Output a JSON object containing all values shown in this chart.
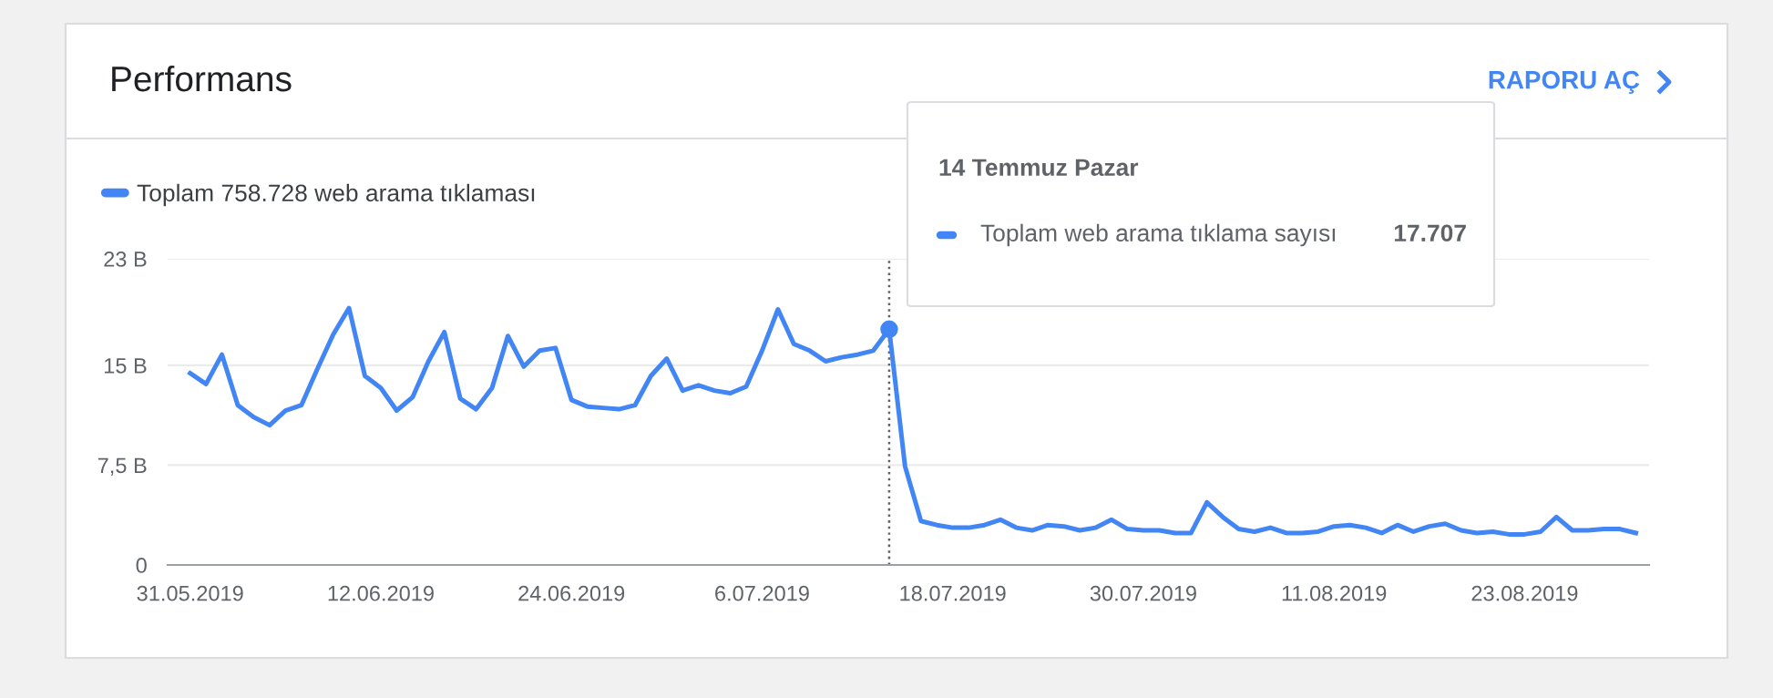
{
  "chart_data": {
    "type": "line",
    "title": "Performans",
    "x": [
      "2019-05-31",
      "2019-06-01",
      "2019-06-02",
      "2019-06-03",
      "2019-06-04",
      "2019-06-05",
      "2019-06-06",
      "2019-06-07",
      "2019-06-08",
      "2019-06-09",
      "2019-06-10",
      "2019-06-11",
      "2019-06-12",
      "2019-06-13",
      "2019-06-14",
      "2019-06-15",
      "2019-06-16",
      "2019-06-17",
      "2019-06-18",
      "2019-06-19",
      "2019-06-20",
      "2019-06-21",
      "2019-06-22",
      "2019-06-23",
      "2019-06-24",
      "2019-06-25",
      "2019-06-26",
      "2019-06-27",
      "2019-06-28",
      "2019-06-29",
      "2019-06-30",
      "2019-07-01",
      "2019-07-02",
      "2019-07-03",
      "2019-07-04",
      "2019-07-05",
      "2019-07-06",
      "2019-07-07",
      "2019-07-08",
      "2019-07-09",
      "2019-07-10",
      "2019-07-11",
      "2019-07-12",
      "2019-07-13",
      "2019-07-14",
      "2019-07-15",
      "2019-07-16",
      "2019-07-17",
      "2019-07-18",
      "2019-07-19",
      "2019-07-20",
      "2019-07-21",
      "2019-07-22",
      "2019-07-23",
      "2019-07-24",
      "2019-07-25",
      "2019-07-26",
      "2019-07-27",
      "2019-07-28",
      "2019-07-29",
      "2019-07-30",
      "2019-07-31",
      "2019-08-01",
      "2019-08-02",
      "2019-08-03",
      "2019-08-04",
      "2019-08-05",
      "2019-08-06",
      "2019-08-07",
      "2019-08-08",
      "2019-08-09",
      "2019-08-10",
      "2019-08-11",
      "2019-08-12",
      "2019-08-13",
      "2019-08-14",
      "2019-08-15",
      "2019-08-16",
      "2019-08-17",
      "2019-08-18",
      "2019-08-19",
      "2019-08-20",
      "2019-08-21",
      "2019-08-22",
      "2019-08-23",
      "2019-08-24",
      "2019-08-25",
      "2019-08-26",
      "2019-08-27",
      "2019-08-28",
      "2019-08-29",
      "2019-08-30"
    ],
    "series": [
      {
        "name": "Toplam 758.728 web arama tıklaması",
        "color": "#4285f4",
        "values": [
          14.4,
          13.6,
          15.8,
          12.0,
          11.1,
          10.5,
          11.6,
          12.0,
          14.7,
          17.3,
          19.3,
          14.2,
          13.3,
          11.6,
          12.6,
          15.3,
          17.5,
          12.5,
          11.7,
          13.3,
          17.2,
          14.9,
          16.1,
          16.3,
          12.4,
          11.9,
          11.8,
          11.7,
          12.0,
          14.2,
          15.5,
          13.1,
          13.5,
          13.1,
          12.9,
          13.4,
          16.1,
          19.2,
          16.6,
          16.1,
          15.3,
          15.6,
          15.8,
          16.1,
          17.707,
          7.4,
          3.3,
          3.0,
          2.8,
          2.8,
          3.0,
          3.4,
          2.8,
          2.6,
          3.0,
          2.9,
          2.6,
          2.8,
          3.4,
          2.7,
          2.6,
          2.6,
          2.4,
          2.4,
          4.7,
          3.6,
          2.7,
          2.5,
          2.8,
          2.4,
          2.4,
          2.5,
          2.9,
          3.0,
          2.8,
          2.4,
          3.0,
          2.5,
          2.9,
          3.1,
          2.6,
          2.4,
          2.5,
          2.3,
          2.3,
          2.5,
          3.6,
          2.6,
          2.6,
          2.7,
          2.7,
          2.4
        ]
      }
    ],
    "xlim": [
      "2019-05-29T14:00",
      "2019-08-30T20:00"
    ],
    "xticks": [
      {
        "value": "2019-05-31",
        "label": "31.05.2019"
      },
      {
        "value": "2019-06-12",
        "label": "12.06.2019"
      },
      {
        "value": "2019-06-24",
        "label": "24.06.2019"
      },
      {
        "value": "2019-07-06",
        "label": "6.07.2019"
      },
      {
        "value": "2019-07-18",
        "label": "18.07.2019"
      },
      {
        "value": "2019-07-30",
        "label": "30.07.2019"
      },
      {
        "value": "2019-08-11",
        "label": "11.08.2019"
      },
      {
        "value": "2019-08-23",
        "label": "23.08.2019"
      }
    ],
    "ylim": [
      0,
      23
    ],
    "yticks": [
      {
        "value": 0,
        "label": "0"
      },
      {
        "value": 7.5,
        "label": "7,5 B"
      },
      {
        "value": 15,
        "label": "15 B"
      },
      {
        "value": 23,
        "label": "23 B"
      }
    ],
    "grid": "y",
    "legend": "top left",
    "marker": "none",
    "line_style": "solid",
    "ref_lines": [
      {
        "axis": "x",
        "value": "2019-07-14",
        "color": "#5f6368",
        "line_style": "dotted"
      }
    ],
    "annotations": [
      "14 Temmuz Pazar",
      "Toplam web arama tıklama sayısı",
      "17.707",
      "RAPORU AÇ"
    ]
  }
}
